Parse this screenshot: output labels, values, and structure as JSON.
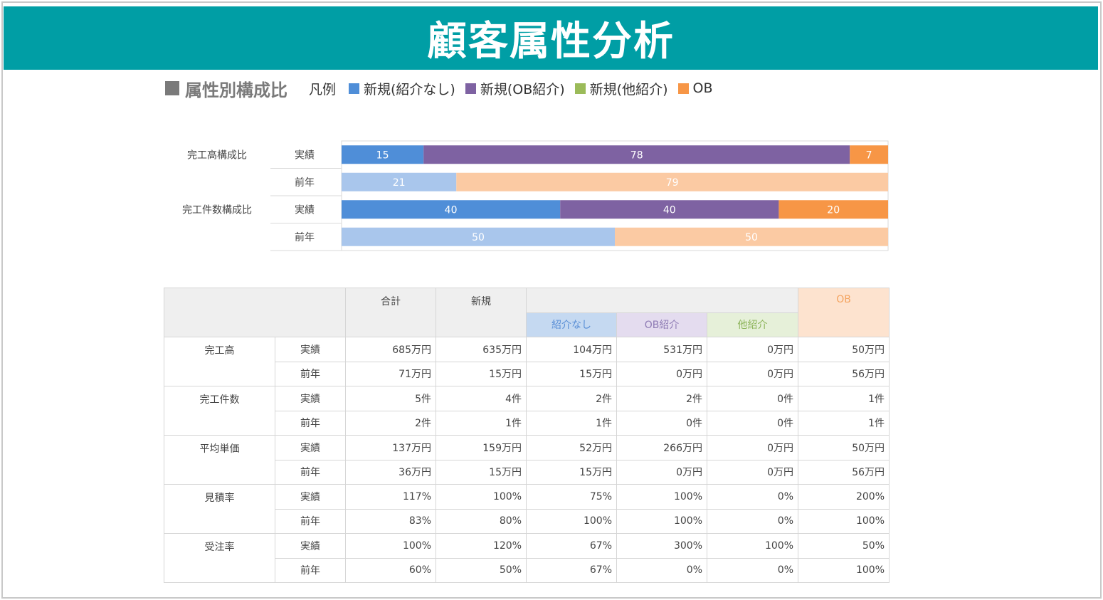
{
  "title": "顧客属性分析",
  "section_title": "属性別構成比",
  "legend": {
    "label": "凡例",
    "items": [
      {
        "name": "新規(紹介なし)",
        "color": "#4f8ed8"
      },
      {
        "name": "新規(OB紹介)",
        "color": "#7e62a2"
      },
      {
        "name": "新規(他紹介)",
        "color": "#9bbb59"
      },
      {
        "name": "OB",
        "color": "#f79646"
      }
    ]
  },
  "chart_data": {
    "type": "bar",
    "orientation": "horizontal",
    "stacked": true,
    "normalized": true,
    "xlim": [
      0,
      100
    ],
    "grid": false,
    "groups": [
      {
        "label": "完工高構成比",
        "rows": [
          {
            "period": "実績",
            "values": [
              15,
              78,
              0,
              7
            ]
          },
          {
            "period": "前年",
            "values": [
              21,
              0,
              0,
              79
            ]
          }
        ]
      },
      {
        "label": "完工件数構成比",
        "rows": [
          {
            "period": "実績",
            "values": [
              40,
              40,
              0,
              20
            ]
          },
          {
            "period": "前年",
            "values": [
              50,
              0,
              0,
              50
            ]
          }
        ]
      }
    ],
    "series": [
      {
        "name": "新規(紹介なし)",
        "color": "#4f8ed8",
        "prev_color": "#a9c6ec"
      },
      {
        "name": "新規(OB紹介)",
        "color": "#7e62a2",
        "prev_color": "#c3b3d8"
      },
      {
        "name": "新規(他紹介)",
        "color": "#9bbb59",
        "prev_color": "#cfe0ae"
      },
      {
        "name": "OB",
        "color": "#f79646",
        "prev_color": "#fbcaa3"
      }
    ]
  },
  "table": {
    "headers": {
      "total": "合計",
      "new": "新規",
      "ob": "OB"
    },
    "subheaders": {
      "none": "紹介なし",
      "ob_intro": "OB紹介",
      "other": "他紹介"
    },
    "rows": [
      {
        "metric": "完工高",
        "actual": {
          "period": "実績",
          "cells": [
            "685万円",
            "635万円",
            "104万円",
            "531万円",
            "0万円",
            "50万円"
          ]
        },
        "prev": {
          "period": "前年",
          "cells": [
            "71万円",
            "15万円",
            "15万円",
            "0万円",
            "0万円",
            "56万円"
          ]
        }
      },
      {
        "metric": "完工件数",
        "actual": {
          "period": "実績",
          "cells": [
            "5件",
            "4件",
            "2件",
            "2件",
            "0件",
            "1件"
          ]
        },
        "prev": {
          "period": "前年",
          "cells": [
            "2件",
            "1件",
            "1件",
            "0件",
            "0件",
            "1件"
          ]
        }
      },
      {
        "metric": "平均単価",
        "actual": {
          "period": "実績",
          "cells": [
            "137万円",
            "159万円",
            "52万円",
            "266万円",
            "0万円",
            "50万円"
          ]
        },
        "prev": {
          "period": "前年",
          "cells": [
            "36万円",
            "15万円",
            "15万円",
            "0万円",
            "0万円",
            "56万円"
          ]
        }
      },
      {
        "metric": "見積率",
        "actual": {
          "period": "実績",
          "cells": [
            "117%",
            "100%",
            "75%",
            "100%",
            "0%",
            "200%"
          ]
        },
        "prev": {
          "period": "前年",
          "cells": [
            "83%",
            "80%",
            "100%",
            "100%",
            "0%",
            "100%"
          ]
        }
      },
      {
        "metric": "受注率",
        "actual": {
          "period": "実績",
          "cells": [
            "100%",
            "120%",
            "67%",
            "300%",
            "100%",
            "50%"
          ]
        },
        "prev": {
          "period": "前年",
          "cells": [
            "60%",
            "50%",
            "67%",
            "0%",
            "0%",
            "100%"
          ]
        }
      }
    ]
  }
}
